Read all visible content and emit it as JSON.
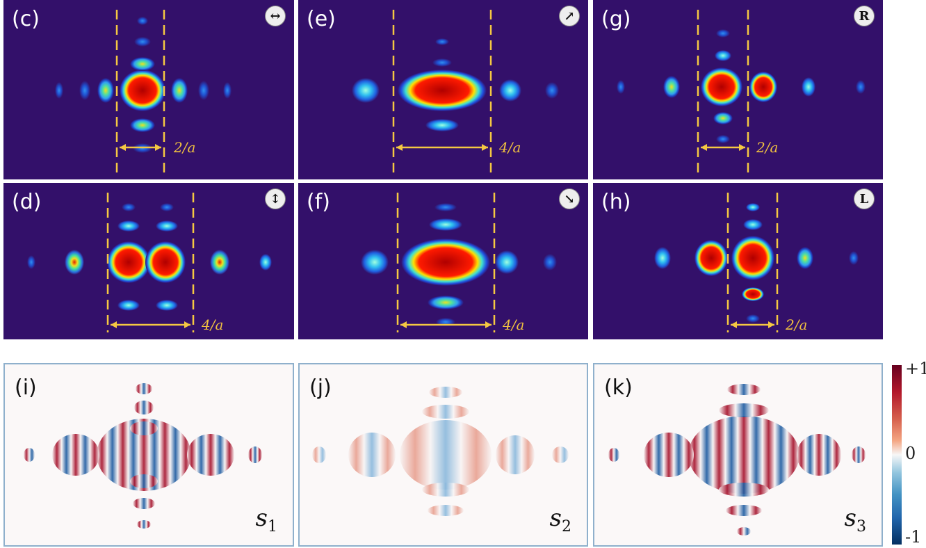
{
  "panels": [
    {
      "id": "c",
      "label": "(c)",
      "badge": "↔",
      "distance": "2/a"
    },
    {
      "id": "e",
      "label": "(e)",
      "badge": "↗",
      "distance": "4/a"
    },
    {
      "id": "g",
      "label": "(g)",
      "badge": "R",
      "distance": "2/a"
    },
    {
      "id": "d",
      "label": "(d)",
      "badge": "↕",
      "distance": "4/a"
    },
    {
      "id": "f",
      "label": "(f)",
      "badge": "↘",
      "distance": "4/a"
    },
    {
      "id": "h",
      "label": "(h)",
      "badge": "L",
      "distance": "2/a"
    },
    {
      "id": "i",
      "label": "(i)",
      "stokes": "s",
      "sub": "1"
    },
    {
      "id": "j",
      "label": "(j)",
      "stokes": "s",
      "sub": "2"
    },
    {
      "id": "k",
      "label": "(k)",
      "stokes": "s",
      "sub": "3"
    }
  ],
  "colorbar": {
    "max": "+1",
    "mid": "0",
    "min": "-1"
  }
}
